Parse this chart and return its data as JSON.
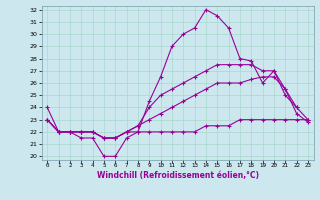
{
  "xlabel": "Windchill (Refroidissement éolien,°C)",
  "bg_color": "#cce8ee",
  "grid_color": "#aad8cc",
  "line_color": "#990099",
  "ylim": [
    20,
    32
  ],
  "yticks": [
    20,
    21,
    22,
    23,
    24,
    25,
    26,
    27,
    28,
    29,
    30,
    31,
    32
  ],
  "line1_x": [
    0,
    1,
    2,
    3,
    4,
    5,
    6,
    7,
    8,
    9,
    10,
    11,
    12,
    13,
    14,
    15,
    16,
    17,
    18,
    19,
    20,
    21,
    22
  ],
  "line1_y": [
    24,
    22,
    22,
    21.5,
    21.5,
    20,
    20,
    21.5,
    22,
    24.5,
    26.5,
    29,
    30,
    30.5,
    32,
    31.5,
    30.5,
    28,
    27.8,
    26,
    27,
    25,
    24
  ],
  "line2_x": [
    0,
    1,
    2,
    3,
    4,
    5,
    6,
    7,
    8,
    9,
    10,
    11,
    12,
    13,
    14,
    15,
    16,
    17,
    18,
    19,
    20,
    21,
    22,
    23
  ],
  "line2_y": [
    23,
    22,
    22,
    22,
    22,
    21.5,
    21.5,
    22,
    22.5,
    24,
    25,
    25.5,
    26,
    26.5,
    27,
    27.5,
    27.5,
    27.5,
    27.5,
    27,
    27,
    25.5,
    24,
    23
  ],
  "line3_x": [
    0,
    1,
    2,
    3,
    4,
    5,
    6,
    7,
    8,
    9,
    10,
    11,
    12,
    13,
    14,
    15,
    16,
    17,
    18,
    19,
    20,
    21,
    22,
    23
  ],
  "line3_y": [
    23,
    22,
    22,
    22,
    22,
    21.5,
    21.5,
    22,
    22.5,
    23,
    23.5,
    24,
    24.5,
    25,
    25.5,
    26,
    26,
    26,
    26.3,
    26.5,
    26.5,
    25.5,
    23.5,
    22.8
  ],
  "line4_x": [
    0,
    1,
    2,
    3,
    4,
    5,
    6,
    7,
    8,
    9,
    10,
    11,
    12,
    13,
    14,
    15,
    16,
    17,
    18,
    19,
    20,
    21,
    22,
    23
  ],
  "line4_y": [
    23,
    22,
    22,
    22,
    22,
    21.5,
    21.5,
    22,
    22,
    22,
    22,
    22,
    22,
    22,
    22.5,
    22.5,
    22.5,
    23,
    23,
    23,
    23,
    23,
    23,
    23
  ]
}
